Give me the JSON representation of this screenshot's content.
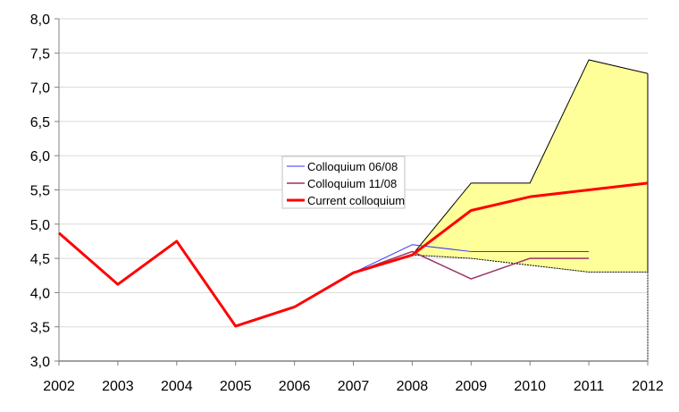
{
  "chart_data": {
    "type": "line",
    "title": "",
    "xlabel": "",
    "ylabel": "",
    "x": [
      2002,
      2003,
      2004,
      2005,
      2006,
      2007,
      2008,
      2009,
      2010,
      2011,
      2012
    ],
    "x_tick_labels": [
      "2002",
      "2003",
      "2004",
      "2005",
      "2006",
      "2007",
      "2008",
      "2009",
      "2010",
      "2011",
      "2012"
    ],
    "ylim": [
      3.0,
      8.0
    ],
    "y_ticks": [
      3.0,
      3.5,
      4.0,
      4.5,
      5.0,
      5.5,
      6.0,
      6.5,
      7.0,
      7.5,
      8.0
    ],
    "y_tick_labels": [
      "3,0",
      "3,5",
      "4,0",
      "4,5",
      "5,0",
      "5,5",
      "6,0",
      "6,5",
      "7,0",
      "7,5",
      "8,0"
    ],
    "grid": "horizontal",
    "legend_position": "center",
    "band": {
      "color": "#ffff99",
      "x": [
        2008,
        2009,
        2010,
        2011,
        2012
      ],
      "upper": [
        4.55,
        5.6,
        5.6,
        7.4,
        7.2
      ],
      "lower": [
        4.55,
        4.5,
        4.4,
        4.3,
        4.3
      ]
    },
    "series": [
      {
        "name": "Colloquium 06/08",
        "color": "#3333ff",
        "width": 1,
        "x": [
          2002,
          2003,
          2004,
          2005,
          2006,
          2007,
          2008,
          2009,
          2010,
          2011
        ],
        "values": [
          4.87,
          4.12,
          4.75,
          3.51,
          3.79,
          4.29,
          4.7,
          4.6,
          4.6,
          4.6
        ]
      },
      {
        "name": "Colloquium 11/08",
        "color": "#993366",
        "width": 1.5,
        "x": [
          2002,
          2003,
          2004,
          2005,
          2006,
          2007,
          2008,
          2009,
          2010,
          2011
        ],
        "values": [
          4.87,
          4.12,
          4.75,
          3.51,
          3.79,
          4.29,
          4.6,
          4.2,
          4.5,
          4.5
        ]
      },
      {
        "name": "Current colloquium",
        "color": "#ff0000",
        "width": 3,
        "x": [
          2002,
          2003,
          2004,
          2005,
          2006,
          2007,
          2008,
          2009,
          2010,
          2011,
          2012
        ],
        "values": [
          4.87,
          4.12,
          4.75,
          3.51,
          3.79,
          4.29,
          4.55,
          5.2,
          5.4,
          5.5,
          5.6
        ]
      }
    ]
  }
}
